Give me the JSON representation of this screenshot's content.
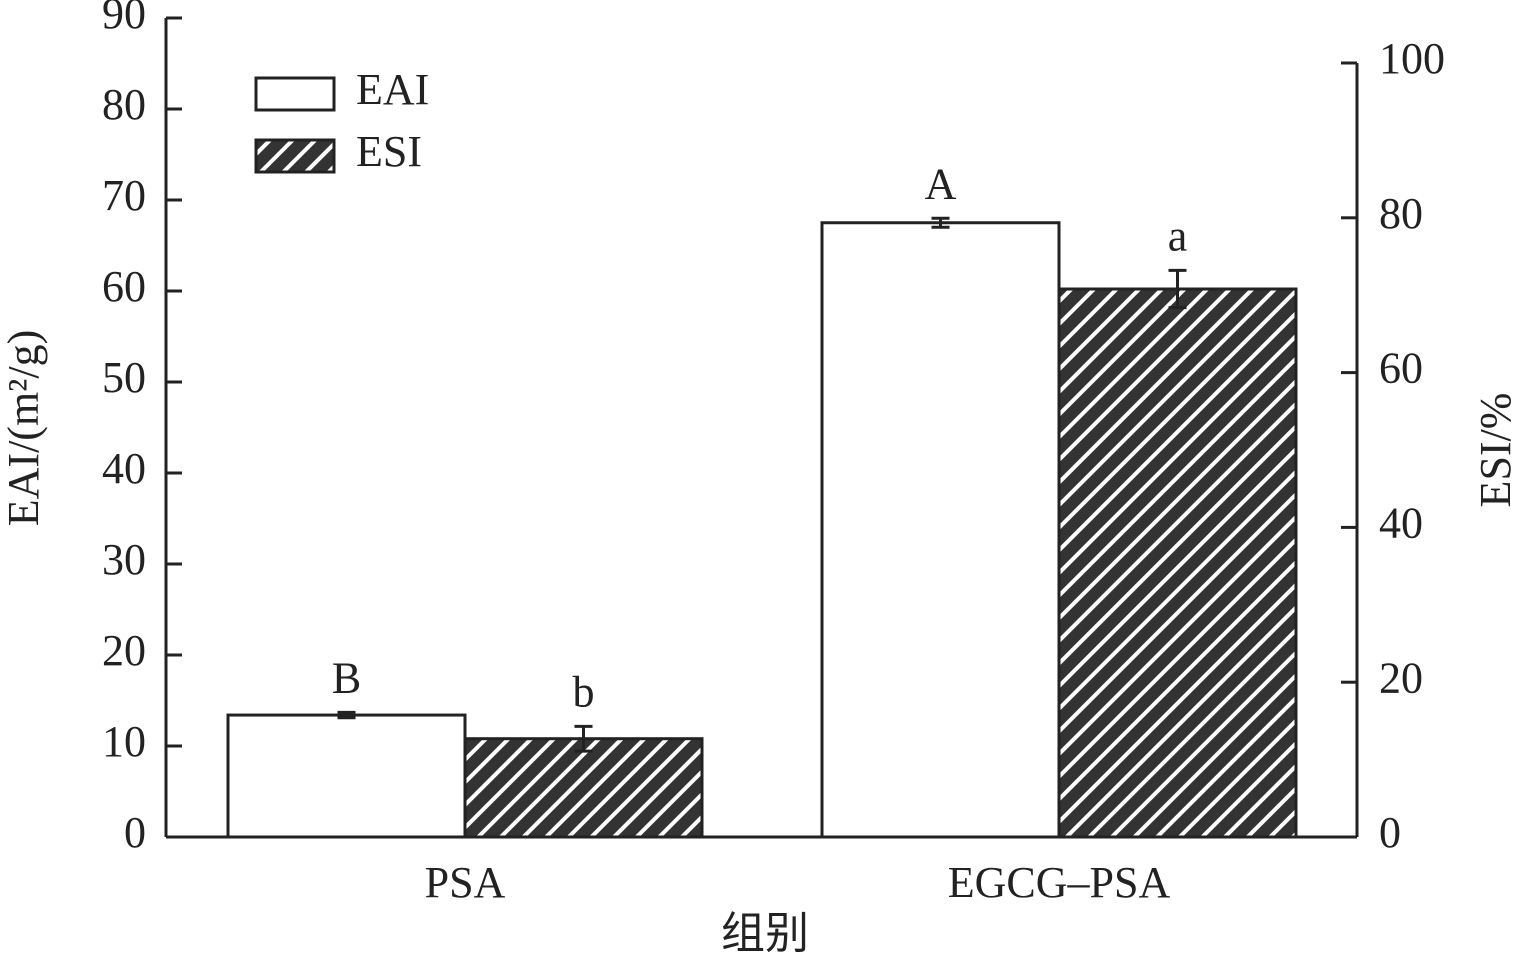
{
  "chart_data": {
    "type": "bar",
    "categories": [
      "PSA",
      "EGCG–PSA"
    ],
    "x_label": "组别",
    "y_label": "EAI/(m²/g)",
    "y2_label": "ESI/%",
    "ylim": [
      0,
      90
    ],
    "yticks": [
      0,
      10,
      20,
      30,
      40,
      50,
      60,
      70,
      80,
      90
    ],
    "y2lim": [
      0,
      100
    ],
    "y2ticks": [
      0,
      20,
      40,
      60,
      80,
      100
    ],
    "legend": "upper left",
    "series": [
      {
        "name": "EAI",
        "color": "#ffffff",
        "values": [
          13.4,
          67.5
        ],
        "errors": [
          0.3,
          0.5
        ],
        "labels": [
          "B",
          "A"
        ]
      },
      {
        "name": "ESI",
        "color": "#333333",
        "axis": "y2",
        "hatch": true,
        "values": [
          12.7,
          70.8
        ],
        "errors": [
          1.6,
          2.4
        ],
        "labels": [
          "b",
          "a"
        ]
      }
    ]
  }
}
